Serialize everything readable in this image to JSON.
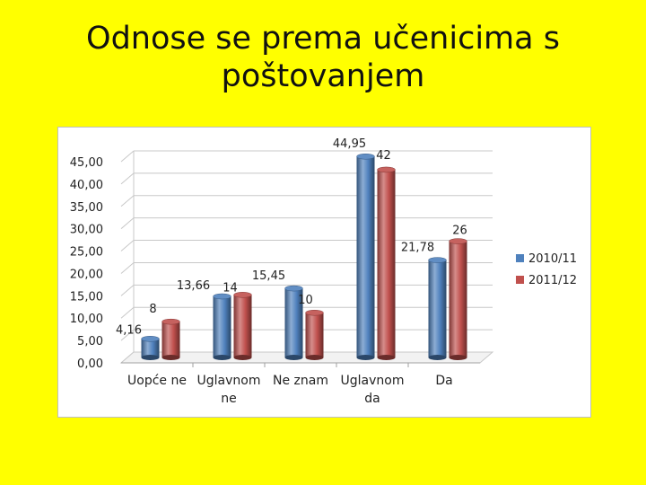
{
  "slide": {
    "title_line1": "Odnose se prema učenicima s",
    "title_line2": "poštovanjem"
  },
  "chart_data": {
    "type": "bar",
    "title": "",
    "categories": [
      [
        "Uopće ne"
      ],
      [
        "Uglavnom",
        "ne"
      ],
      [
        "Ne znam"
      ],
      [
        "Uglavnom",
        "da"
      ],
      [
        "Da"
      ]
    ],
    "series": [
      {
        "name": "2010/11",
        "color": "#4F81BD",
        "values": [
          4.16,
          13.66,
          15.45,
          44.95,
          21.78
        ],
        "labels": [
          "4,16",
          "13,66",
          "15,45",
          "44,95",
          "21,78"
        ]
      },
      {
        "name": "2011/12",
        "color": "#C0504D",
        "values": [
          8,
          14,
          10,
          42,
          26
        ],
        "labels": [
          "8",
          "14",
          "10",
          "42",
          "26"
        ]
      }
    ],
    "ylim": [
      0,
      45
    ],
    "yticks": [
      "0,00",
      "5,00",
      "10,00",
      "15,00",
      "20,00",
      "25,00",
      "30,00",
      "35,00",
      "40,00",
      "45,00"
    ],
    "grid": true,
    "legend": "right",
    "style": "3d-cylinder"
  }
}
